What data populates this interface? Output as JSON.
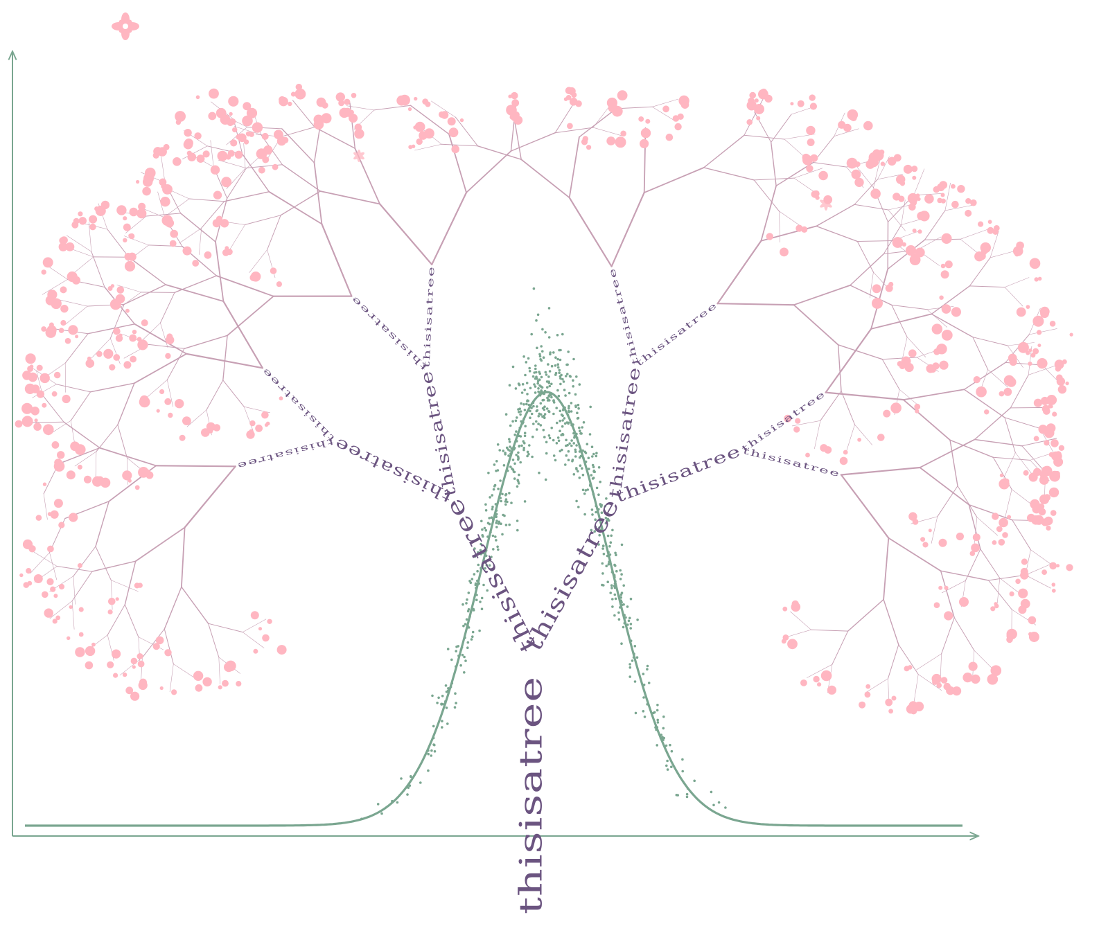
{
  "artwork": {
    "trunk_word": "thisisatree",
    "branch_word": "thisisatree",
    "colors": {
      "background": "#ffffff",
      "branch": "#6b5480",
      "twig": "#c7a0b4",
      "blossom": "#ffb6c1",
      "curve": "#7aa690",
      "axis": "#7aa690"
    },
    "icons": [
      "flower-icon",
      "axis-arrow-icon"
    ]
  }
}
